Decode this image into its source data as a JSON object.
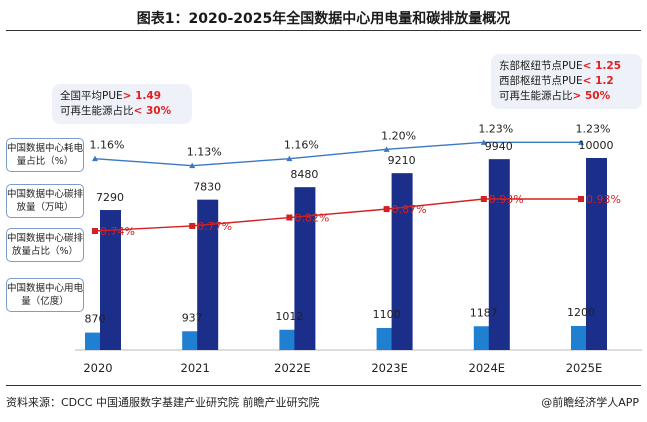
{
  "title": "图表1：2020-2025年全国数据中心用电量和碳排放量概况",
  "legend_labels": [
    "中国数据中心耗电量占比（%）",
    "中国数据中心碳排放量（万吨）",
    "中国数据中心碳排放量占比（%）",
    "中国数据中心用电量（亿度）"
  ],
  "callout_left": {
    "line1_text": "全国平均PUE",
    "line1_value": "> 1.49",
    "line2_text": "可再生能源占比",
    "line2_value": "< 30%"
  },
  "callout_right": {
    "line1_text": "东部枢纽节点PUE",
    "line1_value": "< 1.25",
    "line2_text": "西部枢纽节点PUE",
    "line2_value": "< 1.2",
    "line3_text": "可再生能源占比",
    "line3_value": "> 50%"
  },
  "source": "资料来源：CDCC 中国通服数字基建产业研究院 前瞻产业研究院",
  "brand": "@前瞻经济学人APP",
  "colors": {
    "electricity_bar": "#1f7fd0",
    "carbon_bar": "#1a2e8a",
    "share_line": "#3a78c2",
    "carbon_share_line": "#d42020",
    "carbon_share_label": "#d42020"
  },
  "chart_data": {
    "type": "bar",
    "categories": [
      "2020",
      "2021",
      "2022E",
      "2023E",
      "2024E",
      "2025E"
    ],
    "series": [
      {
        "name": "中国数据中心用电量（亿度）",
        "type": "bar",
        "values": [
          870,
          937,
          1012,
          1100,
          1187,
          1200
        ],
        "labels": [
          "870",
          "937",
          "1012",
          "1100",
          "1187",
          "1200"
        ]
      },
      {
        "name": "中国数据中心碳排放量（万吨）",
        "type": "bar",
        "values": [
          7290,
          7830,
          8480,
          9210,
          9940,
          10000
        ],
        "labels": [
          "7290",
          "7830",
          "8480",
          "9210",
          "9940",
          "10000"
        ]
      },
      {
        "name": "中国数据中心耗电量占比（%）",
        "type": "line",
        "values": [
          1.16,
          1.13,
          1.16,
          1.2,
          1.23,
          1.23
        ],
        "labels": [
          "1.16%",
          "1.13%",
          "1.16%",
          "1.20%",
          "1.23%",
          "1.23%"
        ]
      },
      {
        "name": "中国数据中心碳排放量占比（%）",
        "type": "line",
        "values": [
          0.74,
          0.77,
          0.82,
          0.87,
          0.93,
          0.93
        ],
        "labels": [
          "0.74%",
          "0.77%",
          "0.82%",
          "0.87%",
          "0.93%",
          "0.93%"
        ]
      }
    ],
    "xlabel": "",
    "ylabel": "",
    "grid": false
  }
}
